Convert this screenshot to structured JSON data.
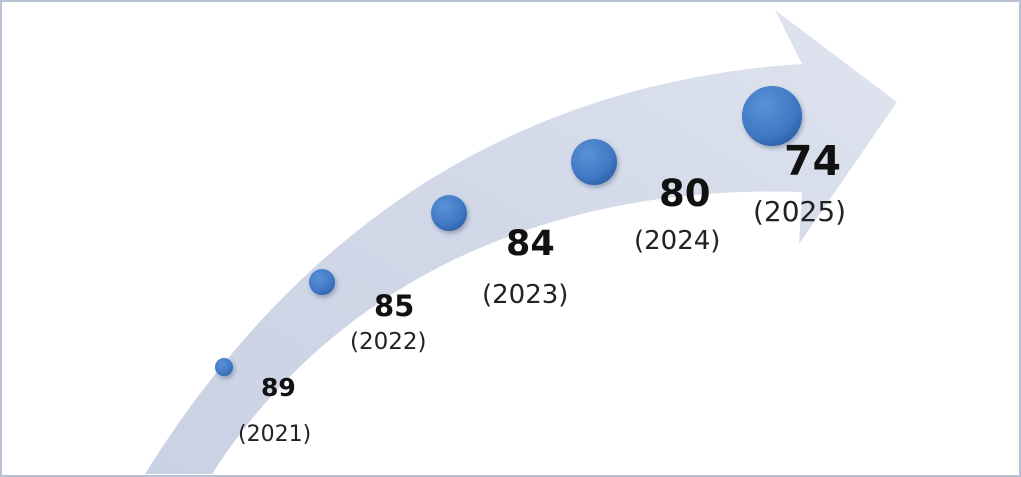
{
  "diagram": {
    "arrow_color": "#d3d9e8",
    "dot_color": "#3f77c4",
    "milestones": [
      {
        "value": "89",
        "year": "(2021)"
      },
      {
        "value": "85",
        "year": "(2022)"
      },
      {
        "value": "84",
        "year": "(2023)"
      },
      {
        "value": "80",
        "year": "(2024)"
      },
      {
        "value": "74",
        "year": "(2025)"
      }
    ]
  }
}
